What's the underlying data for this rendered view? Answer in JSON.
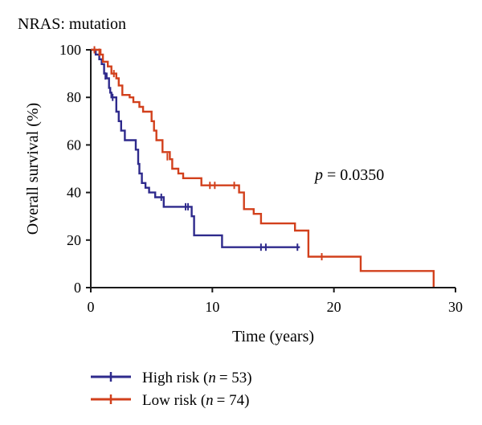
{
  "chart_data": {
    "type": "line",
    "title": "NRAS: mutation",
    "xlabel": "Time (years)",
    "ylabel": "Overall survival (%)",
    "xlim": [
      0,
      30
    ],
    "ylim": [
      0,
      100
    ],
    "xticks": [
      "0",
      "10",
      "20",
      "30"
    ],
    "yticks": [
      "0",
      "20",
      "40",
      "60",
      "80",
      "100"
    ],
    "annotation": {
      "p_symbol": "p",
      "p_value": "= 0.0350"
    },
    "legend_position": "bottom-left",
    "grid": false,
    "series": [
      {
        "key": "high",
        "legend_label": "High risk (",
        "legend_n_symbol": "n",
        "legend_n_value": "= 53)",
        "color": "#2e2a8c",
        "steps": [
          [
            0,
            100
          ],
          [
            0.4,
            98
          ],
          [
            0.7,
            96
          ],
          [
            0.9,
            94
          ],
          [
            1.1,
            90
          ],
          [
            1.3,
            88
          ],
          [
            1.5,
            84
          ],
          [
            1.6,
            82
          ],
          [
            1.7,
            80
          ],
          [
            2.1,
            74
          ],
          [
            2.3,
            70
          ],
          [
            2.5,
            66
          ],
          [
            2.8,
            62
          ],
          [
            3.7,
            58
          ],
          [
            3.9,
            52
          ],
          [
            4.0,
            48
          ],
          [
            4.2,
            44
          ],
          [
            4.5,
            42
          ],
          [
            4.8,
            40
          ],
          [
            5.3,
            38
          ],
          [
            6.0,
            34
          ],
          [
            8.3,
            30
          ],
          [
            8.5,
            22
          ],
          [
            10.8,
            17
          ],
          [
            17.2,
            17
          ]
        ],
        "censors": [
          [
            1.2,
            89
          ],
          [
            1.8,
            80
          ],
          [
            5.8,
            38
          ],
          [
            7.8,
            34
          ],
          [
            8.0,
            34
          ],
          [
            14.0,
            17
          ],
          [
            14.4,
            17
          ],
          [
            17.0,
            17
          ]
        ]
      },
      {
        "key": "low",
        "legend_label": "Low risk (",
        "legend_n_symbol": "n",
        "legend_n_value": "= 74)",
        "color": "#d2401c",
        "steps": [
          [
            0,
            100
          ],
          [
            0.8,
            98
          ],
          [
            1.0,
            95
          ],
          [
            1.4,
            93
          ],
          [
            1.7,
            90
          ],
          [
            2.1,
            88
          ],
          [
            2.3,
            85
          ],
          [
            2.6,
            81
          ],
          [
            3.2,
            80
          ],
          [
            3.5,
            78
          ],
          [
            4.0,
            76
          ],
          [
            4.3,
            74
          ],
          [
            5.0,
            70
          ],
          [
            5.2,
            66
          ],
          [
            5.4,
            62
          ],
          [
            5.9,
            57
          ],
          [
            6.5,
            54
          ],
          [
            6.7,
            50
          ],
          [
            7.2,
            48
          ],
          [
            7.6,
            46
          ],
          [
            9.1,
            43
          ],
          [
            12.2,
            40
          ],
          [
            12.6,
            33
          ],
          [
            13.4,
            31
          ],
          [
            14.0,
            27
          ],
          [
            16.8,
            24
          ],
          [
            17.9,
            13
          ],
          [
            22.2,
            7
          ],
          [
            28.2,
            0
          ]
        ],
        "censors": [
          [
            0.3,
            100
          ],
          [
            0.7,
            99
          ],
          [
            1.9,
            90
          ],
          [
            6.3,
            55
          ],
          [
            9.8,
            43
          ],
          [
            10.2,
            43
          ],
          [
            11.8,
            43
          ],
          [
            19.0,
            13
          ]
        ]
      }
    ]
  }
}
